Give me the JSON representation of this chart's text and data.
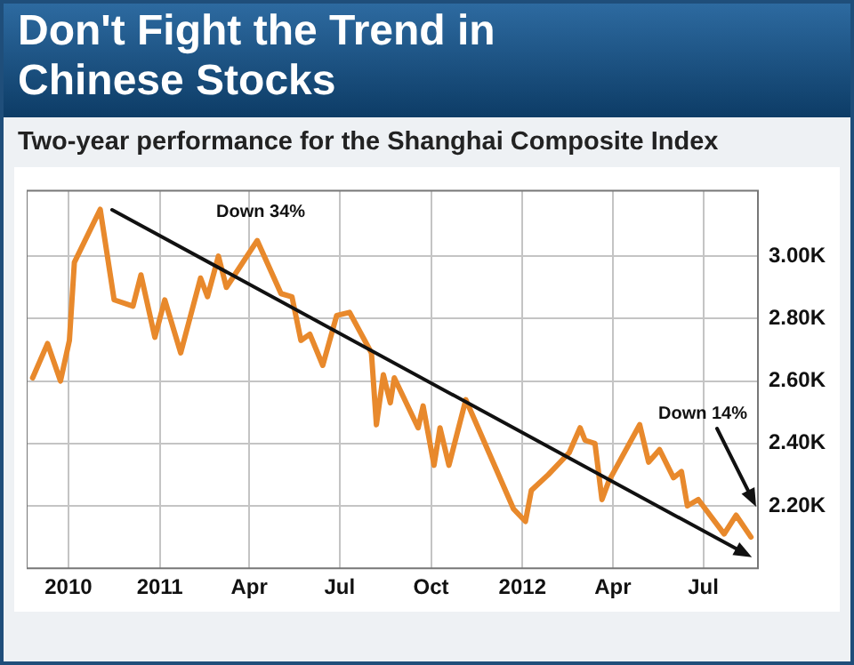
{
  "chart_data": {
    "type": "line",
    "title": "Don't Fight the Trend in Chinese Stocks",
    "subtitle": "Two-year performance for the Shanghai Composite Index",
    "x": [
      "2010-08-26",
      "2010-09-10",
      "2010-09-23",
      "2010-10-02",
      "2010-10-07",
      "2010-11-02",
      "2010-11-16",
      "2010-12-05",
      "2010-12-13",
      "2010-12-27",
      "2011-01-06",
      "2011-01-22",
      "2011-02-11",
      "2011-02-18",
      "2011-03-01",
      "2011-03-09",
      "2011-04-09",
      "2011-05-03",
      "2011-05-14",
      "2011-05-23",
      "2011-06-01",
      "2011-06-14",
      "2011-06-28",
      "2011-07-11",
      "2011-08-02",
      "2011-08-07",
      "2011-08-14",
      "2011-08-21",
      "2011-08-25",
      "2011-09-18",
      "2011-09-23",
      "2011-10-04",
      "2011-10-10",
      "2011-10-19",
      "2011-11-05",
      "2011-11-16",
      "2011-12-23",
      "2012-01-04",
      "2012-01-10",
      "2012-01-27",
      "2012-02-17",
      "2012-02-28",
      "2012-03-04",
      "2012-03-14",
      "2012-03-21",
      "2012-03-28",
      "2012-04-28",
      "2012-05-07",
      "2012-05-18",
      "2012-06-01",
      "2012-06-09",
      "2012-06-15",
      "2012-06-26",
      "2012-07-22",
      "2012-08-03",
      "2012-08-18"
    ],
    "series": [
      {
        "color": "#e8892c",
        "values": [
          2.61,
          2.72,
          2.6,
          2.73,
          2.98,
          3.15,
          2.86,
          2.84,
          2.94,
          2.74,
          2.86,
          2.69,
          2.93,
          2.87,
          3.0,
          2.9,
          3.05,
          2.88,
          2.87,
          2.73,
          2.75,
          2.65,
          2.81,
          2.82,
          2.69,
          2.46,
          2.62,
          2.53,
          2.61,
          2.45,
          2.52,
          2.33,
          2.45,
          2.33,
          2.54,
          2.46,
          2.19,
          2.15,
          2.25,
          2.3,
          2.37,
          2.45,
          2.41,
          2.4,
          2.22,
          2.28,
          2.46,
          2.34,
          2.38,
          2.29,
          2.31,
          2.2,
          2.22,
          2.11,
          2.17,
          2.1
        ]
      }
    ],
    "xlim": [
      "2010-08-20",
      "2012-08-25"
    ],
    "xticks": [
      {
        "value": "2010-10-01",
        "label": "2010"
      },
      {
        "value": "2011-01-01",
        "label": "2011"
      },
      {
        "value": "2011-04-01",
        "label": "Apr"
      },
      {
        "value": "2011-07-01",
        "label": "Jul"
      },
      {
        "value": "2011-10-01",
        "label": "Oct"
      },
      {
        "value": "2012-01-01",
        "label": "2012"
      },
      {
        "value": "2012-04-01",
        "label": "Apr"
      },
      {
        "value": "2012-07-01",
        "label": "Jul"
      }
    ],
    "ylim": [
      2.0,
      3.21
    ],
    "yticks": [
      {
        "value": 2.2,
        "label": "2.20K"
      },
      {
        "value": 2.4,
        "label": "2.40K"
      },
      {
        "value": 2.6,
        "label": "2.60K"
      },
      {
        "value": 2.8,
        "label": "2.80K"
      },
      {
        "value": 3.0,
        "label": "3.00K"
      }
    ],
    "annotations": [
      "Down 34%",
      "Down 14%"
    ],
    "grid": true,
    "legend": false,
    "marker": "none",
    "line_style": "solid"
  }
}
